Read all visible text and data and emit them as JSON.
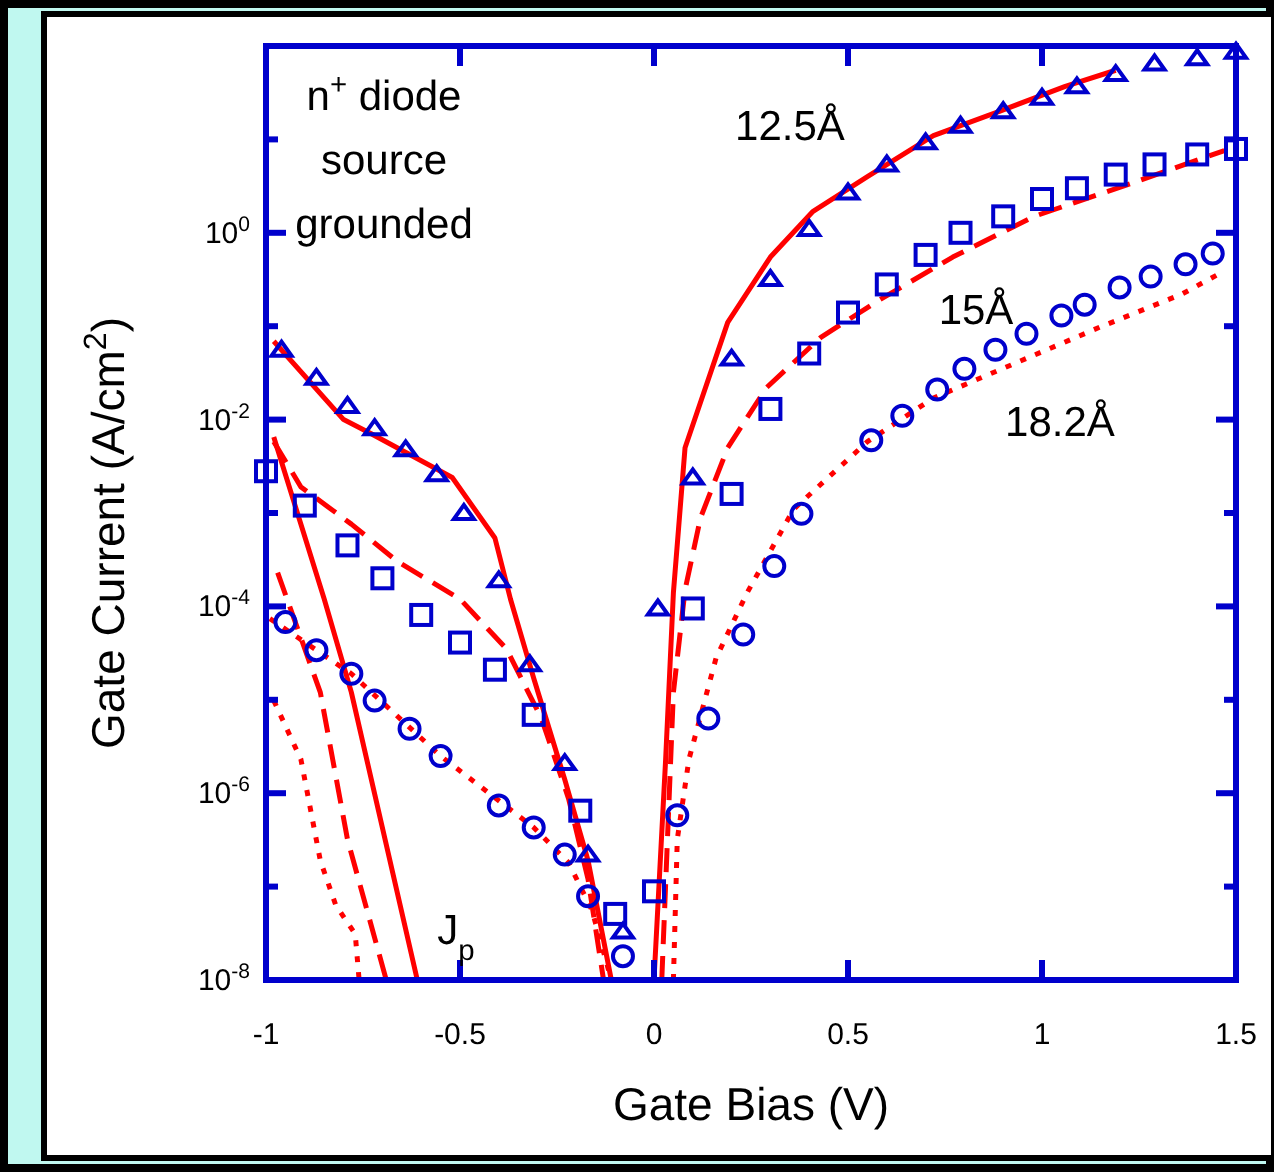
{
  "chart_data": {
    "type": "scatter",
    "xlabel": "Gate Bias (V)",
    "ylabel": "Gate Current (A/cm$^{2}$)",
    "log": "y",
    "xlim": [
      -1,
      1.5
    ],
    "xticks": [
      -1,
      -0.5,
      0,
      0.5,
      1,
      1.5
    ],
    "ylim": [
      1e-08,
      100
    ],
    "yticks": [
      {
        "value": 1e-08,
        "label": "10$^{-8}$"
      },
      {
        "value": 1e-07,
        "label": null
      },
      {
        "value": 1e-06,
        "label": "10$^{-6}$"
      },
      {
        "value": 1e-05,
        "label": null
      },
      {
        "value": 0.0001,
        "label": "10$^{-4}$"
      },
      {
        "value": 0.001,
        "label": null
      },
      {
        "value": 0.01,
        "label": "10$^{-2}$"
      },
      {
        "value": 0.1,
        "label": null
      },
      {
        "value": 1,
        "label": "10$^{0}$"
      },
      {
        "value": 10,
        "label": null
      },
      {
        "value": 100,
        "label": null
      }
    ],
    "grid": false,
    "annotations": [
      "n$^{+}$ diode",
      "source",
      "grounded",
      "12.5Å",
      "15Å",
      "18.2Å",
      "J$_{p}$"
    ],
    "series": [
      {
        "marker": "triangle",
        "color": "#0000cc",
        "x": [
          -0.96,
          -0.87,
          -0.79,
          -0.72,
          -0.64,
          -0.56,
          -0.49,
          -0.4,
          -0.32,
          -0.23,
          -0.17,
          -0.08,
          0.01,
          0.1,
          0.2,
          0.3,
          0.4,
          0.5,
          0.6,
          0.7,
          0.79,
          0.9,
          1.0,
          1.09,
          1.19,
          1.29,
          1.4,
          1.5
        ],
        "values": [
          0.056,
          0.028,
          0.014,
          0.0081,
          0.0048,
          0.0026,
          0.001,
          0.00019,
          2.4e-05,
          2.1e-06,
          2.2e-07,
          3.3e-08,
          9.5e-05,
          0.0024,
          0.045,
          0.32,
          1.1,
          2.7,
          5.4,
          9.3,
          14,
          20,
          28,
          37,
          50,
          65,
          74,
          87
        ]
      },
      {
        "marker": "square",
        "color": "#0000cc",
        "x": [
          -1.0,
          -0.9,
          -0.79,
          -0.7,
          -0.6,
          -0.5,
          -0.41,
          -0.31,
          -0.19,
          -0.1,
          0.0,
          0.1,
          0.2,
          0.3,
          0.4,
          0.5,
          0.6,
          0.7,
          0.79,
          0.9,
          1.0,
          1.09,
          1.19,
          1.29,
          1.4,
          1.5
        ],
        "values": [
          0.0028,
          0.0012,
          0.00045,
          0.0002,
          8.1e-05,
          4.1e-05,
          2.1e-05,
          6.9e-06,
          6.5e-07,
          5.1e-08,
          8.9e-08,
          9.5e-05,
          0.0016,
          0.013,
          0.051,
          0.14,
          0.28,
          0.58,
          1.0,
          1.5,
          2.3,
          3.0,
          4.2,
          5.4,
          6.9,
          7.9
        ]
      },
      {
        "marker": "circle",
        "color": "#0000cc",
        "x": [
          -0.95,
          -0.87,
          -0.78,
          -0.72,
          -0.63,
          -0.55,
          -0.4,
          -0.31,
          -0.23,
          -0.17,
          -0.08,
          0.06,
          0.14,
          0.23,
          0.31,
          0.38,
          0.56,
          0.64,
          0.73,
          0.8,
          0.88,
          0.96,
          1.05,
          1.11,
          1.2,
          1.28,
          1.37,
          1.44
        ],
        "values": [
          6.8e-05,
          3.4e-05,
          1.9e-05,
          9.8e-06,
          4.9e-06,
          2.5e-06,
          7.4e-07,
          4.3e-07,
          2.2e-07,
          7.9e-08,
          1.8e-08,
          5.8e-07,
          6.3e-06,
          5e-05,
          0.00027,
          0.00098,
          0.006,
          0.011,
          0.021,
          0.035,
          0.056,
          0.083,
          0.13,
          0.17,
          0.26,
          0.34,
          0.46,
          0.6
        ]
      },
      {
        "type": "line",
        "line_style": "solid",
        "color": "#ff0000",
        "x": [
          -0.98,
          -0.8,
          -0.73,
          -0.52,
          -0.41,
          -0.37,
          -0.31,
          -0.23,
          -0.17,
          -0.11
        ],
        "values": [
          0.069,
          0.01,
          0.0071,
          0.0024,
          0.00054,
          0.00012,
          1.7e-05,
          1.4e-06,
          1.9e-07,
          1e-08
        ]
      },
      {
        "type": "line",
        "line_style": "solid",
        "color": "#ff0000",
        "x": [
          0.0,
          0.03,
          0.05,
          0.08,
          0.19,
          0.3,
          0.41,
          0.55,
          0.72,
          0.89,
          1.06,
          1.19
        ],
        "values": [
          1e-08,
          2.3e-06,
          0.00014,
          0.005,
          0.11,
          0.55,
          1.7,
          4.0,
          11,
          20,
          37,
          55
        ]
      },
      {
        "type": "line",
        "line_style": "dashed",
        "color": "#ff0000",
        "x": [
          -0.98,
          -0.91,
          -0.78,
          -0.66,
          -0.5,
          -0.38,
          -0.29,
          -0.22,
          -0.17,
          -0.13
        ],
        "values": [
          0.0058,
          0.0019,
          0.00076,
          0.0003,
          0.00012,
          3.5e-05,
          6.3e-06,
          8.7e-07,
          1.2e-07,
          1e-08
        ]
      },
      {
        "type": "line",
        "line_style": "dashed",
        "color": "#ff0000",
        "x": [
          0.02,
          0.05,
          0.08,
          0.12,
          0.19,
          0.29,
          0.43,
          0.58,
          0.77,
          0.98,
          1.24,
          1.47
        ],
        "values": [
          1e-08,
          1.2e-05,
          0.00015,
          0.00089,
          0.005,
          0.022,
          0.076,
          0.19,
          0.55,
          1.5,
          3.5,
          7.6
        ]
      },
      {
        "type": "line",
        "line_style": "dotted",
        "color": "#ff0000",
        "x": [
          -0.99,
          -0.78,
          -0.55,
          -0.31,
          -0.22,
          -0.16,
          -0.11
        ],
        "values": [
          7.4e-05,
          1.9e-05,
          2.5e-06,
          4.3e-07,
          1.8e-07,
          5.6e-08,
          1e-08
        ]
      },
      {
        "type": "line",
        "line_style": "dotted",
        "color": "#ff0000",
        "x": [
          0.05,
          0.06,
          0.09,
          0.16,
          0.24,
          0.36,
          0.55,
          0.72,
          0.93,
          1.15,
          1.36,
          1.47
        ],
        "values": [
          1e-08,
          3.2e-07,
          2.3e-06,
          2.8e-05,
          0.00014,
          0.0011,
          0.0058,
          0.017,
          0.04,
          0.098,
          0.22,
          0.39
        ]
      },
      {
        "type": "line",
        "line_style": "solid",
        "color": "#ff0000",
        "x": [
          -0.98,
          -0.85,
          -0.78,
          -0.61
        ],
        "values": [
          0.0065,
          0.00012,
          1.2e-05,
          1e-08
        ]
      },
      {
        "type": "line",
        "line_style": "dashed",
        "color": "#ff0000",
        "x": [
          -0.97,
          -0.86,
          -0.79,
          -0.69
        ],
        "values": [
          0.00023,
          1.2e-05,
          3.2e-07,
          1e-08
        ]
      },
      {
        "type": "line",
        "line_style": "dotted",
        "color": "#ff0000",
        "x": [
          -0.98,
          -0.91,
          -0.86,
          -0.82,
          -0.77,
          -0.76
        ],
        "values": [
          9.8e-06,
          2.3e-06,
          1.9e-07,
          6.3e-08,
          3.1e-08,
          1e-08
        ]
      }
    ]
  }
}
